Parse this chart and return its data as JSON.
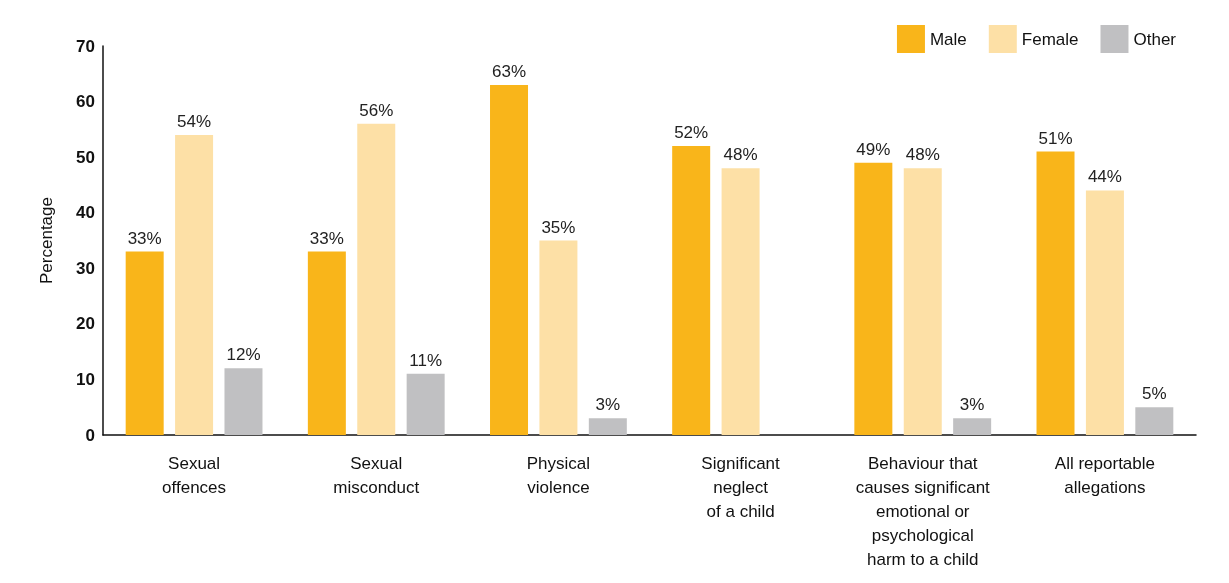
{
  "chart_data": {
    "type": "bar",
    "ylabel": "Percentage",
    "categories": [
      "Sexual\noffences",
      "Sexual\nmisconduct",
      "Physical\nviolence",
      "Significant\nneglect\nof a child",
      "Behaviour that\ncauses significant\nemotional or\npsychological\nharm to a child",
      "All reportable\nallegations"
    ],
    "series": [
      {
        "name": "Male",
        "color": "#f9b51a",
        "values": [
          33,
          33,
          63,
          52,
          49,
          51
        ],
        "value_labels": [
          "33%",
          "33%",
          "63%",
          "52%",
          "49%",
          "51%"
        ]
      },
      {
        "name": "Female",
        "color": "#fde0a6",
        "values": [
          54,
          56,
          35,
          48,
          48,
          44
        ],
        "value_labels": [
          "54%",
          "56%",
          "35%",
          "48%",
          "48%",
          "44%"
        ]
      },
      {
        "name": "Other",
        "color": "#c0c0c2",
        "values": [
          12,
          11,
          3,
          null,
          3,
          5
        ],
        "value_labels": [
          "12%",
          "11%",
          "3%",
          null,
          "3%",
          "5%"
        ]
      }
    ],
    "ylim": [
      0,
      70
    ],
    "yticks": [
      0,
      10,
      20,
      30,
      40,
      50,
      60,
      70
    ],
    "grid": false,
    "legend": "top right"
  }
}
